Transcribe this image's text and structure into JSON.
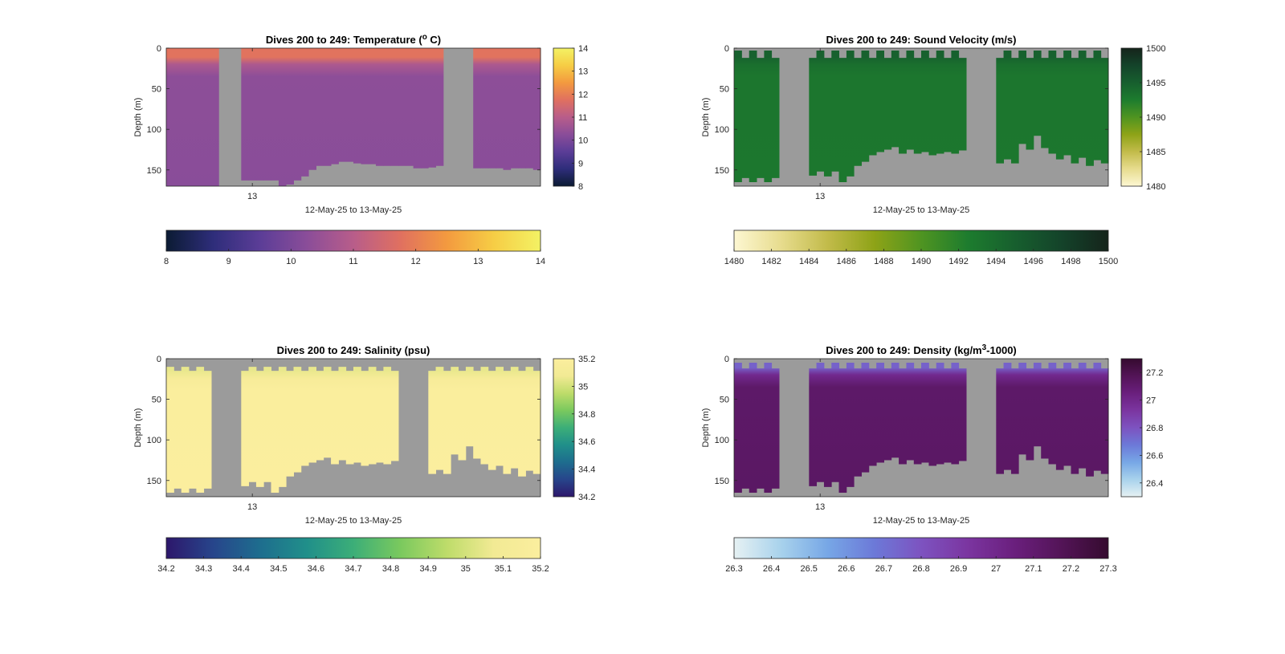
{
  "chart_data": [
    {
      "type": "heatmap",
      "title": "Dives 200 to 249: Temperature (",
      "title_sup": "o",
      "title_tail": " C)",
      "xlabel": "12-May-25 to 13-May-25",
      "ylabel": "Depth (m)",
      "x_tick_labels": [
        "13"
      ],
      "y_ticks": [
        0,
        50,
        100,
        150
      ],
      "ylim": [
        0,
        170
      ],
      "n_dives": 50,
      "colormap": [
        "#0b1b33",
        "#2e2d7a",
        "#5b3d97",
        "#8a4d99",
        "#b85d8a",
        "#e07060",
        "#f39a3f",
        "#f6cd45",
        "#f3f264"
      ],
      "clim": [
        8,
        14
      ],
      "side_colorbar_ticks": [
        8,
        9,
        10,
        11,
        12,
        13,
        14
      ],
      "bottom_colorbar_ticks": [
        8,
        9,
        10,
        11,
        12,
        13,
        14
      ],
      "surface_value": 11.8,
      "deep_value": 10.3,
      "mixed_layer_depth_m": 20,
      "gap_dives": [
        7,
        8,
        9,
        37,
        38,
        39,
        40
      ],
      "top_missing_m": [
        0,
        0,
        0,
        0,
        0,
        0,
        0,
        0,
        0,
        0,
        0,
        0,
        0,
        0,
        0,
        0,
        0,
        0,
        0,
        0,
        0,
        0,
        0,
        0,
        0,
        0,
        0,
        0,
        0,
        0,
        0,
        0,
        0,
        0,
        0,
        0,
        0,
        0,
        0,
        0,
        0,
        0,
        0,
        0,
        0,
        0,
        0,
        0,
        0,
        0
      ],
      "max_depth_m": [
        170,
        170,
        170,
        170,
        170,
        170,
        170,
        0,
        0,
        0,
        163,
        163,
        163,
        163,
        163,
        170,
        168,
        163,
        158,
        150,
        145,
        145,
        143,
        140,
        140,
        142,
        143,
        143,
        145,
        145,
        145,
        145,
        145,
        148,
        148,
        147,
        145,
        0,
        0,
        0,
        0,
        148,
        148,
        148,
        148,
        150,
        148,
        148,
        148,
        150
      ],
      "background": "#9b9b9b"
    },
    {
      "type": "heatmap",
      "title": "Dives 200 to 249: Sound Velocity (m/s)",
      "title_sup": "",
      "title_tail": "",
      "xlabel": "12-May-25 to 13-May-25",
      "ylabel": "Depth (m)",
      "x_tick_labels": [
        "13"
      ],
      "y_ticks": [
        0,
        50,
        100,
        150
      ],
      "ylim": [
        0,
        170
      ],
      "n_dives": 50,
      "colormap": [
        "#fdf7d2",
        "#e7dc8e",
        "#c2bb4a",
        "#8ea317",
        "#4f9421",
        "#1d7c2e",
        "#175f2e",
        "#14432a",
        "#15241b"
      ],
      "clim": [
        1480,
        1500
      ],
      "side_colorbar_ticks": [
        1480,
        1485,
        1490,
        1495,
        1500
      ],
      "bottom_colorbar_ticks": [
        1480,
        1482,
        1484,
        1486,
        1488,
        1490,
        1492,
        1494,
        1496,
        1498,
        1500
      ],
      "surface_value": 1494.8,
      "deep_value": 1493.0,
      "mixed_layer_depth_m": 20,
      "gap_dives": [
        6,
        7,
        8,
        9,
        31,
        32,
        33,
        34
      ],
      "top_missing_m": [
        3,
        12,
        3,
        12,
        3,
        12,
        0,
        0,
        0,
        0,
        12,
        3,
        12,
        3,
        12,
        3,
        12,
        3,
        12,
        3,
        12,
        3,
        12,
        3,
        12,
        3,
        12,
        3,
        12,
        3,
        12,
        0,
        0,
        0,
        0,
        12,
        3,
        12,
        3,
        12,
        3,
        12,
        3,
        12,
        3,
        12,
        3,
        12,
        3,
        12
      ],
      "max_depth_m": [
        165,
        160,
        165,
        160,
        165,
        160,
        0,
        0,
        0,
        0,
        157,
        152,
        158,
        152,
        165,
        158,
        145,
        140,
        132,
        128,
        125,
        122,
        130,
        125,
        130,
        128,
        132,
        130,
        128,
        130,
        126,
        0,
        0,
        0,
        0,
        142,
        137,
        142,
        118,
        125,
        108,
        123,
        130,
        137,
        132,
        142,
        135,
        145,
        138,
        142
      ],
      "background": "#9b9b9b"
    },
    {
      "type": "heatmap",
      "title": "Dives 200 to 249: Salinity (psu)",
      "title_sup": "",
      "title_tail": "",
      "xlabel": "12-May-25 to 13-May-25",
      "ylabel": "Depth (m)",
      "x_tick_labels": [
        "13"
      ],
      "y_ticks": [
        0,
        50,
        100,
        150
      ],
      "ylim": [
        0,
        170
      ],
      "n_dives": 50,
      "colormap": [
        "#2d176b",
        "#27458b",
        "#1e6d8e",
        "#208f8a",
        "#3cae78",
        "#7ac95e",
        "#bedc6a",
        "#f2ea94",
        "#fbee9e"
      ],
      "clim": [
        34.2,
        35.2
      ],
      "side_colorbar_ticks": [
        34.2,
        34.4,
        34.6,
        34.8,
        35,
        35.2
      ],
      "bottom_colorbar_ticks": [
        34.2,
        34.3,
        34.4,
        34.5,
        34.6,
        34.7,
        34.8,
        34.9,
        35,
        35.1,
        35.2
      ],
      "surface_value": 35.05,
      "deep_value": 35.19,
      "mixed_layer_depth_m": 25,
      "gap_dives": [
        6,
        7,
        8,
        9,
        31,
        32,
        33,
        34
      ],
      "top_missing_m": [
        10,
        15,
        10,
        15,
        10,
        15,
        0,
        0,
        0,
        0,
        15,
        10,
        15,
        10,
        15,
        10,
        15,
        10,
        15,
        10,
        15,
        10,
        15,
        10,
        15,
        10,
        15,
        10,
        15,
        10,
        15,
        0,
        0,
        0,
        0,
        15,
        10,
        15,
        10,
        15,
        10,
        15,
        10,
        15,
        10,
        15,
        10,
        15,
        10,
        15
      ],
      "max_depth_m": [
        165,
        160,
        165,
        160,
        165,
        160,
        0,
        0,
        0,
        0,
        157,
        152,
        158,
        152,
        165,
        158,
        145,
        140,
        132,
        128,
        125,
        122,
        130,
        125,
        130,
        128,
        132,
        130,
        128,
        130,
        126,
        0,
        0,
        0,
        0,
        142,
        137,
        142,
        118,
        125,
        108,
        123,
        130,
        137,
        132,
        142,
        135,
        145,
        138,
        142
      ],
      "background": "#9b9b9b"
    },
    {
      "type": "heatmap",
      "title": "Dives 200 to 249: Density (kg/m",
      "title_sup": "3",
      "title_tail": "-1000)",
      "xlabel": "12-May-25 to 13-May-25",
      "ylabel": "Depth (m)",
      "x_tick_labels": [
        "13"
      ],
      "y_ticks": [
        0,
        50,
        100,
        150
      ],
      "ylim": [
        0,
        170
      ],
      "n_dives": 50,
      "colormap": [
        "#e6f1f3",
        "#a8d2ec",
        "#77a7e6",
        "#6c79d8",
        "#7d53c0",
        "#7b35a0",
        "#6a1f7d",
        "#531457",
        "#350b2f"
      ],
      "clim": [
        26.3,
        27.3
      ],
      "side_colorbar_ticks": [
        26.4,
        26.6,
        26.8,
        27,
        27.2
      ],
      "bottom_colorbar_ticks": [
        26.3,
        26.4,
        26.5,
        26.6,
        26.7,
        26.8,
        26.9,
        27,
        27.1,
        27.2,
        27.3
      ],
      "surface_value": 26.75,
      "deep_value": 27.12,
      "mixed_layer_depth_m": 20,
      "gap_dives": [
        6,
        7,
        8,
        9,
        31,
        32,
        33,
        34
      ],
      "top_missing_m": [
        5,
        12,
        5,
        12,
        5,
        12,
        0,
        0,
        0,
        0,
        12,
        5,
        12,
        5,
        12,
        5,
        12,
        5,
        12,
        5,
        12,
        5,
        12,
        5,
        12,
        5,
        12,
        5,
        12,
        5,
        12,
        0,
        0,
        0,
        0,
        12,
        5,
        12,
        5,
        12,
        5,
        12,
        5,
        12,
        5,
        12,
        5,
        12,
        5,
        12
      ],
      "max_depth_m": [
        165,
        160,
        165,
        160,
        165,
        160,
        0,
        0,
        0,
        0,
        157,
        152,
        158,
        152,
        165,
        158,
        145,
        140,
        132,
        128,
        125,
        122,
        130,
        125,
        130,
        128,
        132,
        130,
        128,
        130,
        126,
        0,
        0,
        0,
        0,
        142,
        137,
        142,
        118,
        125,
        108,
        123,
        130,
        137,
        132,
        142,
        135,
        145,
        138,
        142
      ],
      "background": "#9b9b9b"
    }
  ]
}
